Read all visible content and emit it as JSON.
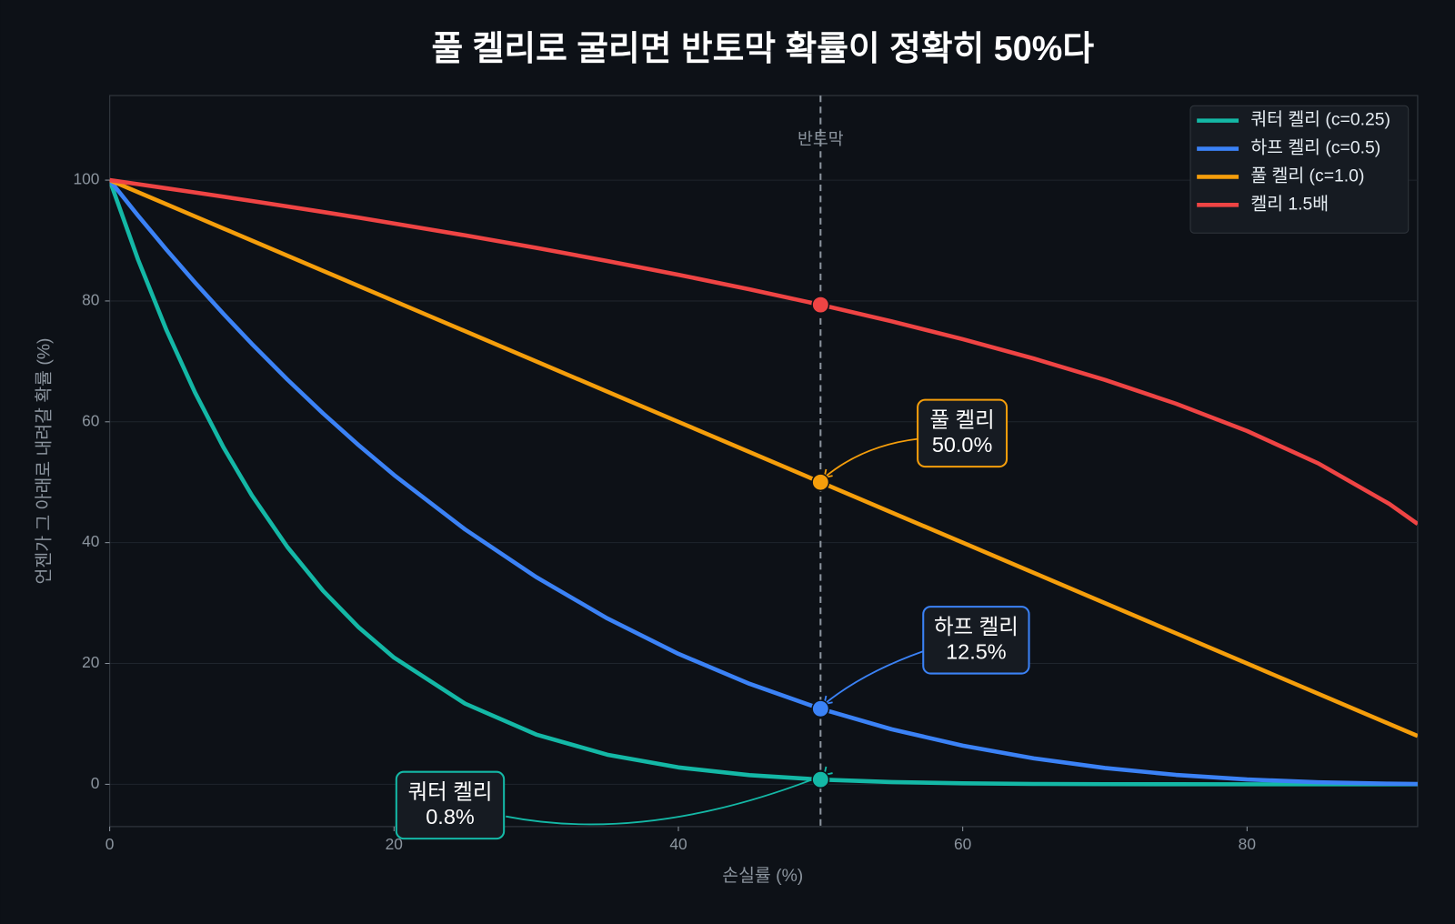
{
  "chart_data": {
    "type": "line",
    "title": "풀 켈리로 굴리면 반토막 확률이 정확히 50%다",
    "xlabel": "손실률 (%)",
    "ylabel": "언젠가 그 아래로 내려갈 확률 (%)",
    "x": [
      0,
      2,
      4,
      6,
      8,
      10,
      12.5,
      15,
      17.5,
      20,
      25,
      30,
      35,
      40,
      45,
      50,
      55,
      60,
      65,
      70,
      75,
      80,
      85,
      90,
      92
    ],
    "series": [
      {
        "name": "쿼터 켈리 (c=0.25)",
        "color": "#14b8a6",
        "values": [
          100,
          86.81,
          75.14,
          64.85,
          55.78,
          47.83,
          39.27,
          32.06,
          26.01,
          20.97,
          13.35,
          8.24,
          4.9,
          2.8,
          1.52,
          0.78,
          0.37,
          0.16,
          0.06,
          0.02,
          0.01,
          0,
          0,
          0,
          0
        ]
      },
      {
        "name": "하프 켈리 (c=0.5)",
        "color": "#3b82f6",
        "values": [
          100,
          94.12,
          88.47,
          83.06,
          77.87,
          72.9,
          66.99,
          61.41,
          56.15,
          51.2,
          42.19,
          34.3,
          27.46,
          21.6,
          16.64,
          12.5,
          9.11,
          6.4,
          4.29,
          2.7,
          1.56,
          0.8,
          0.34,
          0.1,
          0.05
        ]
      },
      {
        "name": "풀 켈리 (c=1.0)",
        "color": "#f59e0b",
        "values": [
          100,
          98,
          96,
          94,
          92,
          90,
          87.5,
          85,
          82.5,
          80,
          75,
          70,
          65,
          60,
          55,
          50,
          45,
          40,
          35,
          30,
          25,
          20,
          15,
          10,
          8
        ]
      },
      {
        "name": "켈리 1.5배",
        "color": "#ef4444",
        "values": [
          100,
          99.33,
          98.65,
          97.96,
          97.26,
          96.55,
          95.65,
          94.73,
          93.8,
          92.83,
          90.86,
          88.79,
          86.62,
          84.34,
          81.93,
          79.37,
          76.63,
          73.68,
          70.47,
          66.94,
          63.0,
          58.48,
          53.13,
          46.42,
          43.09
        ]
      }
    ],
    "xlim": [
      0,
      92
    ],
    "ylim": [
      -7,
      114
    ],
    "xticks": [
      0,
      20,
      40,
      60,
      80
    ],
    "yticks": [
      0,
      20,
      40,
      60,
      80,
      100
    ],
    "grid": true,
    "legend": "upper right",
    "vline": {
      "x": 50,
      "label": "반토막"
    },
    "annotations": [
      {
        "lines": [
          "풀 켈리",
          "50.0%"
        ],
        "x": 50,
        "y": 50,
        "color": "#f59e0b"
      },
      {
        "lines": [
          "하프 켈리",
          "12.5%"
        ],
        "x": 50,
        "y": 12.5,
        "color": "#3b82f6"
      },
      {
        "lines": [
          "쿼터 켈리",
          "0.8%"
        ],
        "x": 50,
        "y": 0.78,
        "color": "#14b8a6"
      },
      {
        "lines": [],
        "x": 50,
        "y": 79.37,
        "color": "#ef4444"
      }
    ]
  }
}
